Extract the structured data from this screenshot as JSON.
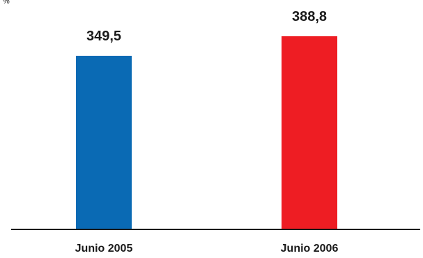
{
  "chart_data": {
    "type": "bar",
    "unit": "%",
    "categories": [
      "Junio 2005",
      "Junio 2006"
    ],
    "values": [
      349.5,
      388.8
    ],
    "value_labels": [
      "349,5",
      "388,8"
    ],
    "colors": [
      "#0a6ab4",
      "#ee1d23"
    ],
    "ylim": [
      0,
      400
    ],
    "grid": false,
    "legend": "none"
  },
  "colors": {
    "axis": "#1a1a1a",
    "text": "#1a1a1a"
  }
}
